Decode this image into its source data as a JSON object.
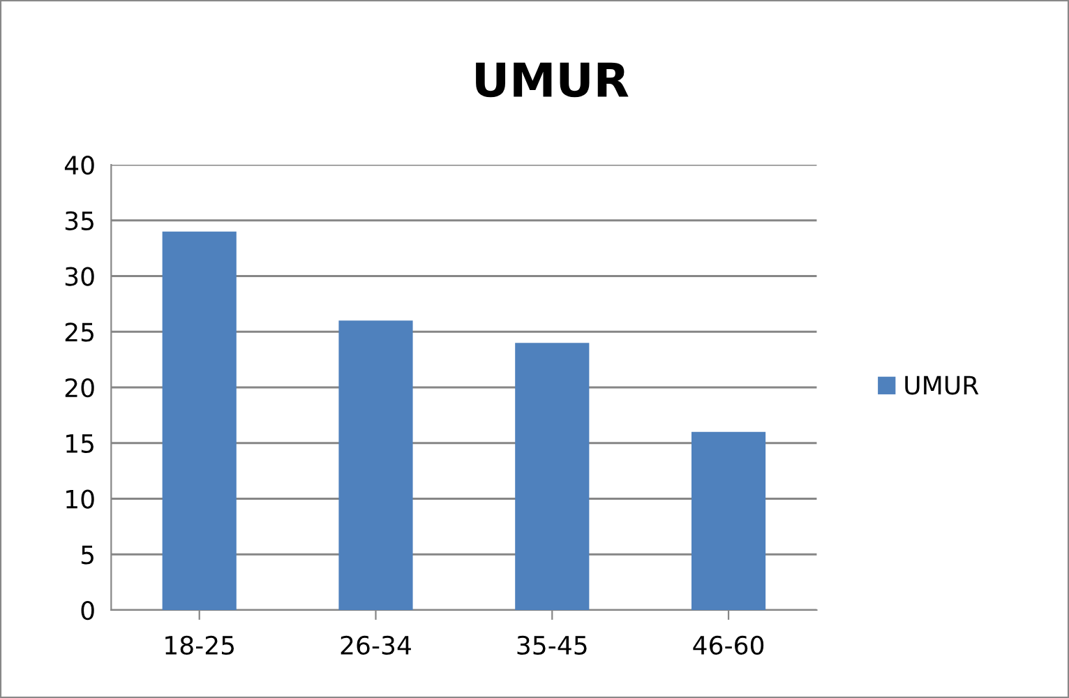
{
  "chart_data": {
    "type": "bar",
    "title": "UMUR",
    "categories": [
      "18-25",
      "26-34",
      "35-45",
      "46-60"
    ],
    "series": [
      {
        "name": "UMUR",
        "color": "#4f81bd",
        "values": [
          34,
          26,
          24,
          16
        ]
      }
    ],
    "ylim": [
      0,
      40
    ],
    "yticks": [
      0,
      5,
      10,
      15,
      20,
      25,
      30,
      35,
      40
    ],
    "grid": "y",
    "legend": "right"
  }
}
